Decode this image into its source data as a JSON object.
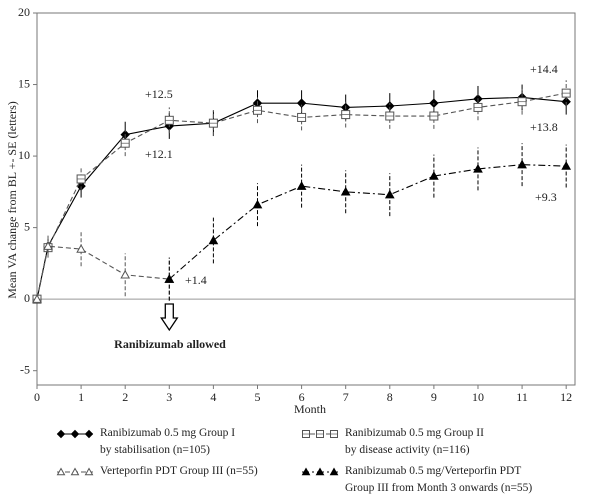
{
  "chart_data": {
    "type": "line",
    "x_label": "Month",
    "y_label": "Mean VA change from BL +- SE (letters)",
    "xlim": [
      0,
      12.2
    ],
    "xticks": [
      0,
      1,
      2,
      3,
      4,
      5,
      6,
      7,
      8,
      9,
      10,
      11,
      12
    ],
    "ylim": [
      -6,
      20
    ],
    "yticks": [
      -5,
      0,
      5,
      10,
      15,
      20
    ],
    "series": [
      {
        "name": "Ranibizumab 0.5 mg Group I\nby stabilisation (n=105)",
        "color": "#000000",
        "marker": "diamond",
        "filled": true,
        "dash": "solid",
        "x": [
          0,
          0.25,
          1,
          2,
          3,
          4,
          5,
          6,
          7,
          8,
          9,
          10,
          11,
          12
        ],
        "values": [
          0,
          3.7,
          7.9,
          11.5,
          12.1,
          12.3,
          13.7,
          13.7,
          13.4,
          13.5,
          13.7,
          14.0,
          14.1,
          13.8
        ],
        "errors": [
          0,
          0.5,
          0.8,
          0.9,
          0.9,
          0.9,
          0.9,
          0.9,
          0.9,
          0.9,
          0.9,
          0.9,
          0.9,
          0.9
        ]
      },
      {
        "name": "Ranibizumab 0.5 mg Group II\nby disease activity (n=116)",
        "color": "#555555",
        "marker": "square",
        "filled": false,
        "dash": "dashed",
        "x": [
          0,
          0.25,
          1,
          2,
          3,
          4,
          5,
          6,
          7,
          8,
          9,
          10,
          11,
          12
        ],
        "values": [
          0,
          3.6,
          8.4,
          10.9,
          12.5,
          12.3,
          13.2,
          12.7,
          12.9,
          12.8,
          12.8,
          13.4,
          13.8,
          14.4
        ],
        "errors": [
          0,
          0.5,
          0.8,
          0.9,
          0.9,
          0.9,
          0.9,
          0.9,
          0.9,
          0.9,
          0.9,
          0.9,
          0.9,
          0.9
        ]
      },
      {
        "name": "Verteporfin PDT Group III (n=55)",
        "color": "#555555",
        "marker": "triangle",
        "filled": false,
        "dash": "dashed",
        "x": [
          0,
          0.25,
          1,
          2,
          3
        ],
        "values": [
          0,
          3.7,
          3.5,
          1.7,
          1.4
        ],
        "errors": [
          0,
          0.8,
          1.2,
          1.5,
          1.5
        ]
      },
      {
        "name": "Ranibizumab 0.5 mg/Verteporfin PDT\nGroup III from Month 3 onwards (n=55)",
        "color": "#000000",
        "marker": "triangle",
        "filled": true,
        "dash": "dashdot",
        "x": [
          3,
          4,
          5,
          6,
          7,
          8,
          9,
          10,
          11,
          12
        ],
        "values": [
          1.4,
          4.1,
          6.6,
          7.9,
          7.5,
          7.3,
          8.6,
          9.1,
          9.4,
          9.3
        ],
        "errors": [
          1.5,
          1.6,
          1.5,
          1.5,
          1.5,
          1.5,
          1.5,
          1.5,
          1.5,
          1.5
        ]
      }
    ],
    "annotations": [
      "+12.5",
      "+12.1",
      "+14.4",
      "+13.8",
      "+9.3",
      "+1.4",
      "Ranibizumab allowed"
    ]
  }
}
